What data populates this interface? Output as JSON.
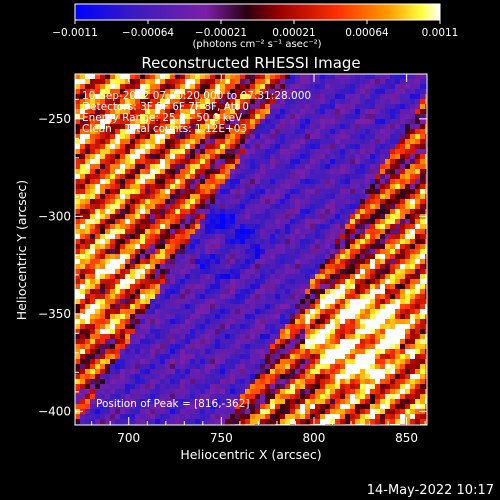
{
  "chart_data": {
    "type": "heatmap",
    "title": "Reconstructed RHESSI Image",
    "xlabel": "Heliocentric X (arcsec)",
    "ylabel": "Heliocentric Y (arcsec)",
    "xlim": [
      671,
      861
    ],
    "ylim": [
      -407,
      -227
    ],
    "x_ticks": [
      700,
      750,
      800,
      850
    ],
    "y_ticks": [
      -250,
      -300,
      -350,
      -400
    ],
    "x_tick_labels": [
      "700",
      "750",
      "800",
      "850"
    ],
    "y_tick_labels": [
      "−250",
      "−300",
      "−350",
      "−400"
    ],
    "colorbar": {
      "min": -0.0011,
      "max": 0.0011,
      "tick_labels": [
        "−0.0011",
        "−0.00064",
        "−0.00021",
        "0.00021",
        "0.00064",
        "0.0011"
      ],
      "units_label": "(photons cm⁻² s⁻¹ asec⁻²)",
      "colors": [
        "#0000ff",
        "#3a1cc0",
        "#7a1fa8",
        "#2a0010",
        "#9a0000",
        "#ff3000",
        "#ff9d00",
        "#ffff40",
        "#ffffff"
      ]
    },
    "annotations": [
      "10-Sep-2012 07:30:20.000 to 07:31:28.000",
      "Detectors: 3F 5F 6F 7F 8F, Att 0",
      "Energy Range: 25.0 - 50.0 keV",
      "Clean    Total counts: 1.12E+03"
    ],
    "peak_label": "Position of Peak = [816,-362]",
    "peak": [
      816,
      -362
    ],
    "grid": false
  },
  "footer_timestamp": "14-May-2022 10:17"
}
